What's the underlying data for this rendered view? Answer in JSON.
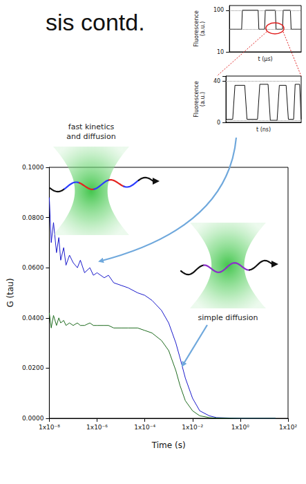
{
  "header": {
    "title": "sis contd."
  },
  "chart_data": [
    {
      "type": "line",
      "x_label": "Time (s)",
      "y_label": "G (tau)",
      "log": "x",
      "grid": false,
      "xlim": [
        1e-08,
        100
      ],
      "xticks": [
        {
          "value": 1e-08,
          "label": "1x10⁻⁸"
        },
        {
          "value": 1e-06,
          "label": "1x10⁻⁶"
        },
        {
          "value": 0.0001,
          "label": "1x10⁻⁴"
        },
        {
          "value": 0.01,
          "label": "1x10⁻²"
        },
        {
          "value": 1,
          "label": "1x10⁰"
        },
        {
          "value": 100,
          "label": "1x10²"
        }
      ],
      "ylim": [
        0,
        0.1
      ],
      "yticks": [
        {
          "value": 0,
          "label": "0.0000"
        },
        {
          "value": 0.02,
          "label": "0.0200"
        },
        {
          "value": 0.04,
          "label": "0.0400"
        },
        {
          "value": 0.06,
          "label": "0.0600"
        },
        {
          "value": 0.08,
          "label": "0.0800"
        },
        {
          "value": 0.1,
          "label": "0.1000"
        }
      ],
      "x": [
        1e-08,
        1.2e-08,
        1.5e-08,
        2e-08,
        2.5e-08,
        3e-08,
        4e-08,
        5e-08,
        7e-08,
        1e-07,
        1.5e-07,
        2e-07,
        3e-07,
        5e-07,
        7e-07,
        1e-06,
        2e-06,
        3e-06,
        5e-06,
        1e-05,
        2e-05,
        5e-05,
        0.0001,
        0.0002,
        0.0005,
        0.001,
        0.002,
        0.003,
        0.005,
        0.01,
        0.02,
        0.05,
        0.1,
        1,
        10,
        30
      ],
      "series": [
        {
          "color": "#1a1acc",
          "values": [
            0.088,
            0.07,
            0.078,
            0.066,
            0.072,
            0.063,
            0.068,
            0.061,
            0.065,
            0.062,
            0.06,
            0.063,
            0.058,
            0.06,
            0.057,
            0.058,
            0.056,
            0.057,
            0.054,
            0.053,
            0.052,
            0.05,
            0.049,
            0.047,
            0.043,
            0.038,
            0.03,
            0.024,
            0.016,
            0.008,
            0.003,
            0.001,
            0.0003,
            0,
            0,
            0
          ]
        },
        {
          "color": "#1e6b1e",
          "values": [
            0.042,
            0.036,
            0.041,
            0.037,
            0.04,
            0.038,
            0.039,
            0.037,
            0.038,
            0.037,
            0.038,
            0.037,
            0.037,
            0.038,
            0.037,
            0.037,
            0.037,
            0.037,
            0.036,
            0.036,
            0.036,
            0.036,
            0.035,
            0.034,
            0.031,
            0.027,
            0.019,
            0.013,
            0.007,
            0.003,
            0.001,
            0.0003,
            0.0001,
            0,
            0,
            0
          ]
        }
      ],
      "annotations": [
        "fast kinetics and diffusion",
        "simple diffusion"
      ]
    },
    {
      "type": "line",
      "x_label": "t (µs)",
      "y_label": "Fluorescence (a.u.)",
      "log": "y",
      "tick_labels": "y",
      "xlim": [
        0,
        10
      ],
      "ylim": [
        10,
        130
      ],
      "yticks": [
        10,
        100
      ],
      "levels": [
        35,
        100
      ],
      "color": "#111111",
      "x": [
        0,
        1.7,
        1.8,
        4.0,
        4.1,
        4.9,
        5.0,
        6.4,
        6.5,
        7.4,
        7.5,
        8.5,
        8.6,
        10
      ],
      "values": [
        35,
        35,
        100,
        100,
        35,
        35,
        100,
        100,
        35,
        35,
        100,
        100,
        35,
        35
      ]
    },
    {
      "type": "line",
      "x_label": "t (ns)",
      "y_label": "Fluorescence (a.u.)",
      "tick_labels": "y",
      "xlim": [
        0,
        10
      ],
      "ylim": [
        0,
        45
      ],
      "yticks": [
        0,
        40
      ],
      "levels": [
        2,
        40
      ],
      "color": "#111111",
      "x": [
        0,
        0.9,
        1.2,
        2.5,
        2.8,
        4.2,
        4.5,
        5.6,
        5.9,
        6.8,
        7.1,
        8.0,
        8.3,
        9.0,
        9.2,
        9.8,
        10
      ],
      "values": [
        3,
        3,
        36,
        36,
        3,
        3,
        37,
        37,
        2,
        2,
        36,
        36,
        3,
        3,
        37,
        37,
        3
      ]
    }
  ]
}
